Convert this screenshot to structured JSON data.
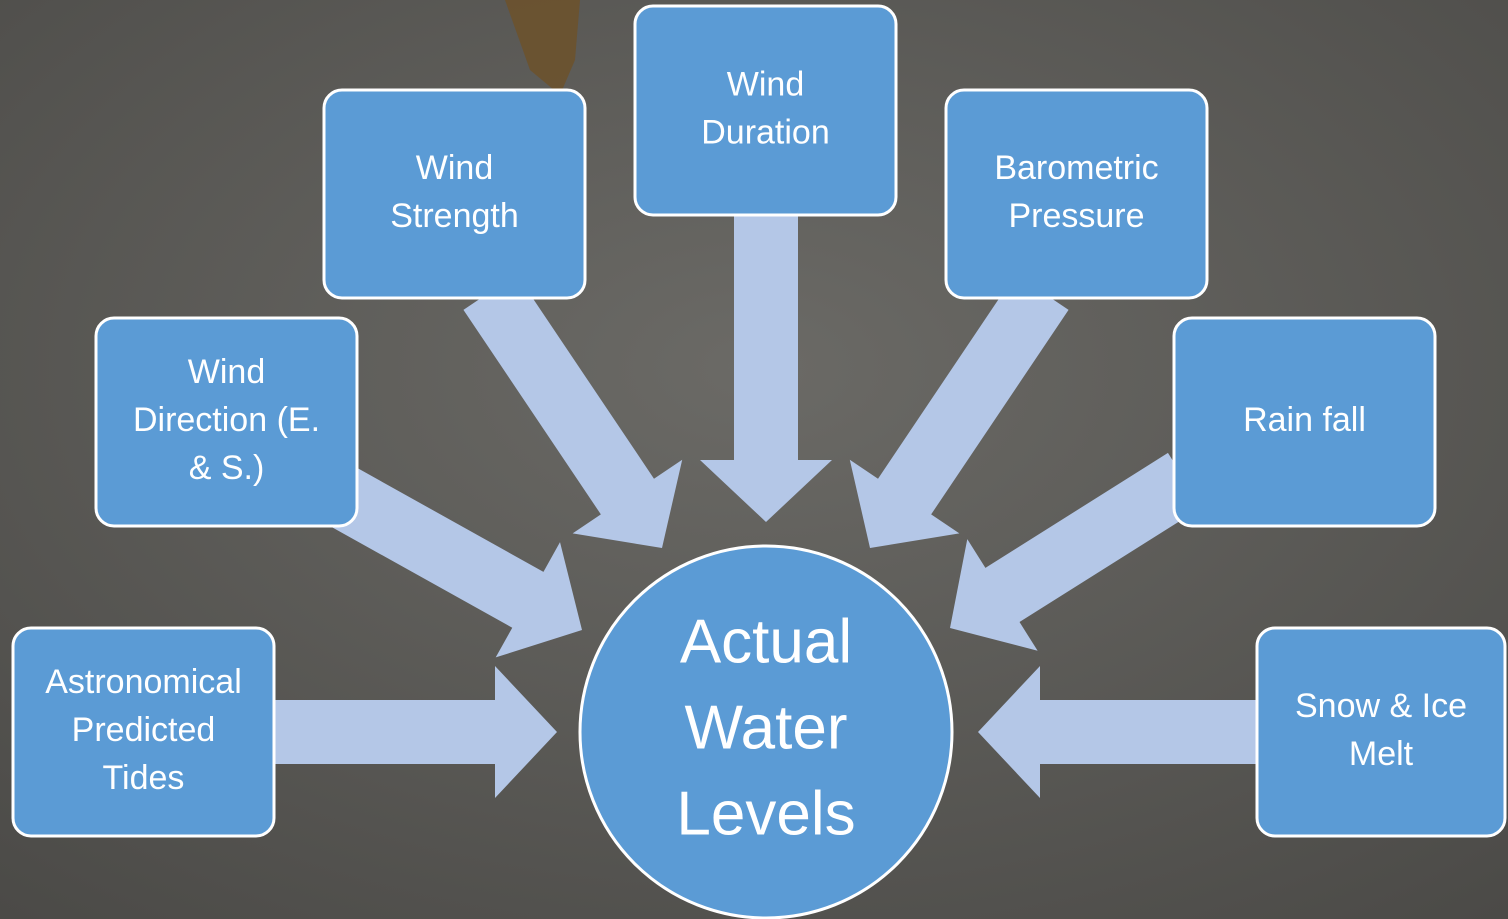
{
  "center": {
    "lines": [
      "Actual",
      "Water",
      "Levels"
    ]
  },
  "nodes": [
    {
      "lines": [
        "Astronomical",
        "Predicted",
        "Tides"
      ]
    },
    {
      "lines": [
        "Wind",
        "Direction (E.",
        "& S.)"
      ]
    },
    {
      "lines": [
        "Wind",
        "Strength"
      ]
    },
    {
      "lines": [
        "Wind",
        "Duration"
      ]
    },
    {
      "lines": [
        "Barometric",
        "Pressure"
      ]
    },
    {
      "lines": [
        "Rain fall"
      ]
    },
    {
      "lines": [
        "Snow & Ice",
        "Melt"
      ]
    }
  ]
}
